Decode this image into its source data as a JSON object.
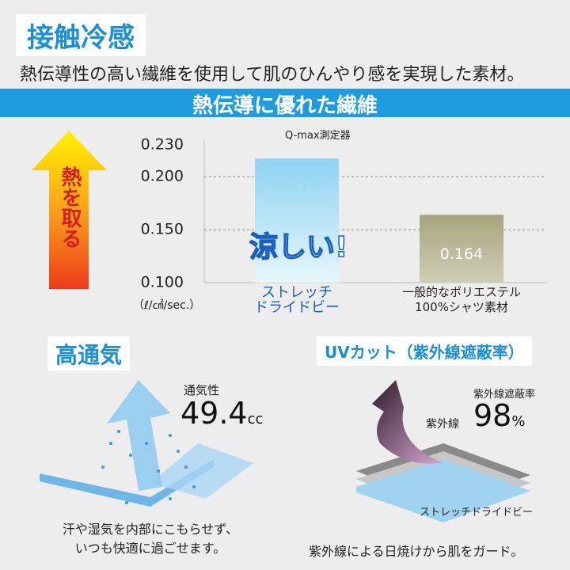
{
  "header": {
    "title": "接触冷感",
    "subtitle": "熱伝導性の高い繊維を使用して肌のひんやり感を実現した素材。"
  },
  "chart_data": {
    "type": "bar",
    "title": "熱伝導に優れた繊維",
    "subtitle": "Q-max測定器",
    "y_unit": "（ℓ/㎠/sec.）",
    "categories": [
      "ストレッチ\nドライドビー",
      "一般的なポリエステル\n100%シャツ素材"
    ],
    "values": [
      0.217,
      0.164
    ],
    "colors": [
      "#8fd3f2",
      "#a7a47e"
    ],
    "ylim": [
      0.1,
      0.23
    ],
    "yticks": [
      {
        "value": 0.1,
        "label": "0.100"
      },
      {
        "value": 0.15,
        "label": "0.150"
      },
      {
        "value": 0.2,
        "label": "0.200"
      },
      {
        "value": 0.23,
        "label": "0.230"
      }
    ],
    "grid": true,
    "annotations": [
      "涼しい!",
      "熱を取る"
    ]
  },
  "breathability": {
    "title": "高通気",
    "label": "通気性",
    "value": 49.4,
    "unit": "cc",
    "caption": "汗や湿気を内部にこもらせず、\nいつも快適に過ごせます。"
  },
  "uv": {
    "title": "UVカット（紫外線遮蔽率）",
    "label": "紫外線遮蔽率",
    "value": 98,
    "unit": "%",
    "ray_label": "紫外線",
    "fabric_label": "ストレッチドライドビー",
    "caption": "紫外線による日焼けから肌をガード。"
  }
}
